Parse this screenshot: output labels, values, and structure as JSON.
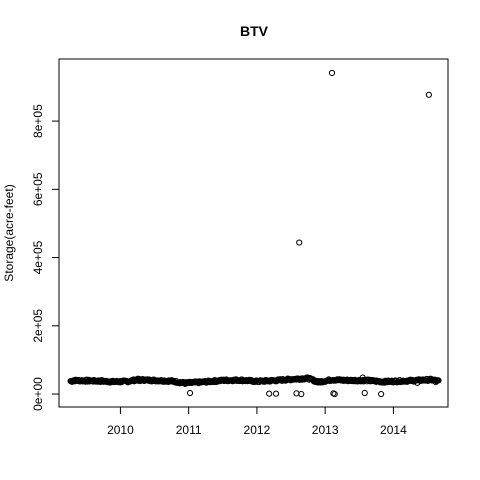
{
  "chart_data": {
    "type": "scatter",
    "title": "BTV",
    "xlabel": "",
    "ylabel": "Storage(acre-feet)",
    "x_ticks": [
      {
        "label": "2010",
        "value": 2010.0
      },
      {
        "label": "2011",
        "value": 2011.0
      },
      {
        "label": "2012",
        "value": 2012.0
      },
      {
        "label": "2013",
        "value": 2013.0
      },
      {
        "label": "2014",
        "value": 2014.0
      }
    ],
    "y_ticks": [
      {
        "label": "0e+00",
        "value": 0
      },
      {
        "label": "2e+05",
        "value": 200000
      },
      {
        "label": "4e+05",
        "value": 400000
      },
      {
        "label": "6e+05",
        "value": 600000
      },
      {
        "label": "8e+05",
        "value": 800000
      }
    ],
    "xlim": [
      2009.1,
      2014.8
    ],
    "ylim": [
      -38000,
      982000
    ],
    "grid": false,
    "legend": "none",
    "marker": "open-circle",
    "baseline": {
      "x_start": 2009.27,
      "x_end": 2014.66,
      "description_values": [
        [
          2009.3,
          40000
        ],
        [
          2009.5,
          39000
        ],
        [
          2009.7,
          38000
        ],
        [
          2009.9,
          36000
        ],
        [
          2010.1,
          37000
        ],
        [
          2010.25,
          42000
        ],
        [
          2010.5,
          40000
        ],
        [
          2010.75,
          38000
        ],
        [
          2010.95,
          32000
        ],
        [
          2011.2,
          35000
        ],
        [
          2011.5,
          40000
        ],
        [
          2011.75,
          41000
        ],
        [
          2012.0,
          37000
        ],
        [
          2012.3,
          40000
        ],
        [
          2012.55,
          44000
        ],
        [
          2012.75,
          46000
        ],
        [
          2012.9,
          35000
        ],
        [
          2013.1,
          42000
        ],
        [
          2013.3,
          40000
        ],
        [
          2013.6,
          40000
        ],
        [
          2013.85,
          36000
        ],
        [
          2014.1,
          38000
        ],
        [
          2014.35,
          40000
        ],
        [
          2014.55,
          42000
        ],
        [
          2014.66,
          38000
        ]
      ]
    },
    "outliers": [
      {
        "x": 2009.85,
        "y": 37000
      },
      {
        "x": 2010.28,
        "y": 38000
      },
      {
        "x": 2011.02,
        "y": 3000
      },
      {
        "x": 2012.18,
        "y": 1000
      },
      {
        "x": 2012.28,
        "y": 1000
      },
      {
        "x": 2012.58,
        "y": 2000
      },
      {
        "x": 2012.65,
        "y": 0
      },
      {
        "x": 2012.62,
        "y": 444000
      },
      {
        "x": 2013.1,
        "y": 941000
      },
      {
        "x": 2013.12,
        "y": 2000
      },
      {
        "x": 2013.14,
        "y": 0
      },
      {
        "x": 2013.55,
        "y": 48000
      },
      {
        "x": 2013.58,
        "y": 3000
      },
      {
        "x": 2013.82,
        "y": 0
      },
      {
        "x": 2014.35,
        "y": 33000
      },
      {
        "x": 2014.52,
        "y": 877000
      },
      {
        "x": 2014.62,
        "y": 35000
      }
    ]
  }
}
